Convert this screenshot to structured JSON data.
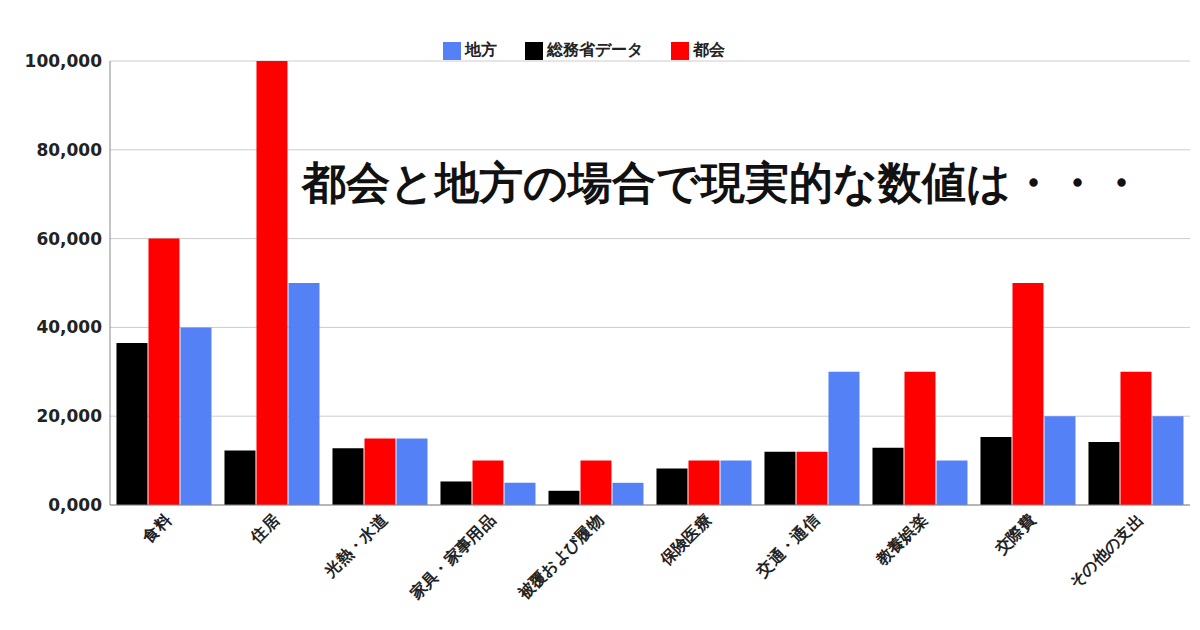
{
  "chart_data": {
    "type": "bar",
    "title": "都会と地方の場合で現実的な数値は・・・",
    "categories": [
      "食料",
      "住居",
      "光熱・水道",
      "家具・家事用品",
      "被覆および履物",
      "保険医療",
      "交通・通信",
      "教養娯楽",
      "交際費",
      "その他の支出"
    ],
    "series": [
      {
        "name": "総務省データ",
        "color": "#000000",
        "values": [
          36500,
          12300,
          12800,
          5300,
          3200,
          8200,
          12000,
          12900,
          15300,
          14200
        ]
      },
      {
        "name": "都会",
        "color": "#ff0000",
        "values": [
          60000,
          100000,
          15000,
          10000,
          10000,
          10000,
          12000,
          30000,
          50000,
          30000
        ]
      },
      {
        "name": "地方",
        "color": "#5581f6",
        "values": [
          40000,
          50000,
          15000,
          5000,
          5000,
          10000,
          30000,
          10000,
          20000,
          20000
        ]
      }
    ],
    "ylim": [
      0,
      100000
    ],
    "yticks": [
      {
        "value": 0,
        "label": "0,000"
      },
      {
        "value": 20000,
        "label": "20,000"
      },
      {
        "value": 40000,
        "label": "40,000"
      },
      {
        "value": 60000,
        "label": "60,000"
      },
      {
        "value": 80000,
        "label": "80,000"
      },
      {
        "value": 100000,
        "label": "100,000"
      }
    ],
    "grid": true,
    "legend": "top"
  }
}
